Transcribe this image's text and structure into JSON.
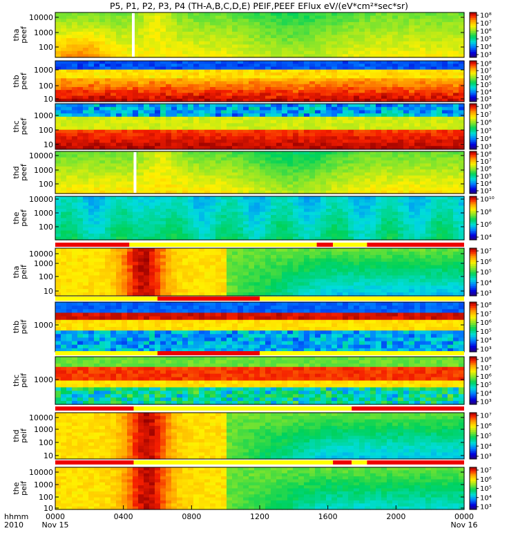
{
  "chart_data": {
    "type": "heatmap",
    "title": "P5, P1, P2, P3, P4 (TH-A,B,C,D,E) PEIF,PEEF EFlux eV/(eV*cm²*sec*sr)",
    "x_axis": {
      "label_line1": "hhmm",
      "label_line2": "2010",
      "ticks": [
        "0000",
        "0400",
        "0800",
        "1200",
        "1600",
        "2000",
        "0000"
      ],
      "tick_hours": [
        0,
        4,
        8,
        12,
        16,
        20,
        24
      ],
      "date_labels": [
        "Nov 15",
        "Nov 16"
      ]
    },
    "colormap": "rainbow (blue to red)",
    "panels": [
      {
        "label": [
          "tha",
          "peef"
        ],
        "yticks": [
          "100",
          "1000",
          "10000"
        ],
        "cbar_ticks": [
          "10³",
          "10⁴",
          "10⁵",
          "10⁶",
          "10⁷",
          "10⁸"
        ]
      },
      {
        "label": [
          "thb",
          "peef"
        ],
        "yticks": [
          "10",
          "100",
          "1000"
        ],
        "cbar_ticks": [
          "10³",
          "10⁴",
          "10⁵",
          "10⁶",
          "10⁷",
          "10⁸"
        ]
      },
      {
        "label": [
          "thc",
          "peef"
        ],
        "yticks": [
          "10",
          "100",
          "1000"
        ],
        "cbar_ticks": [
          "10³",
          "10⁴",
          "10⁵",
          "10⁶",
          "10⁷",
          "10⁸"
        ]
      },
      {
        "label": [
          "thd",
          "peef"
        ],
        "yticks": [
          "100",
          "1000",
          "10000"
        ],
        "cbar_ticks": [
          "10³",
          "10⁴",
          "10⁵",
          "10⁶",
          "10⁷",
          "10⁸"
        ]
      },
      {
        "label": [
          "the",
          "peef"
        ],
        "yticks": [
          "100",
          "1000",
          "10000"
        ],
        "cbar_ticks": [
          "10⁴",
          "10⁶",
          "10⁸",
          "10¹⁰"
        ]
      },
      {
        "label": [
          "tha",
          "peif"
        ],
        "yticks": [
          "10",
          "100",
          "1000",
          "10000"
        ],
        "cbar_ticks": [
          "10³",
          "10⁴",
          "10⁵",
          "10⁶",
          "10⁷"
        ]
      },
      {
        "label": [
          "thb",
          "peif"
        ],
        "yticks": [
          "1000"
        ],
        "cbar_ticks": [
          "10³",
          "10⁴",
          "10⁵",
          "10⁶",
          "10⁷",
          "10⁸"
        ]
      },
      {
        "label": [
          "thc",
          "peif"
        ],
        "yticks": [
          "1000"
        ],
        "cbar_ticks": [
          "10³",
          "10⁴",
          "10⁵",
          "10⁶",
          "10⁷",
          "10⁸"
        ]
      },
      {
        "label": [
          "thd",
          "peif"
        ],
        "yticks": [
          "10",
          "100",
          "1000",
          "10000"
        ],
        "cbar_ticks": [
          "10³",
          "10⁴",
          "10⁵",
          "10⁶",
          "10⁷"
        ]
      },
      {
        "label": [
          "the",
          "peif"
        ],
        "yticks": [
          "10",
          "100",
          "1000",
          "10000"
        ],
        "cbar_ticks": [
          "10³",
          "10⁴",
          "10⁵",
          "10⁶",
          "10⁷"
        ]
      }
    ]
  }
}
